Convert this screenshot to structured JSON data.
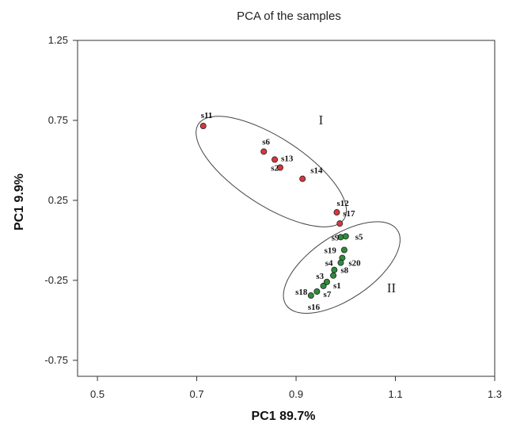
{
  "chart_data": {
    "type": "scatter",
    "title": "PCA of the samples",
    "xlabel": "PC1 89.7%",
    "ylabel": "PC1 9.9%",
    "xlim": [
      0.46,
      1.3
    ],
    "ylim": [
      -0.85,
      1.25
    ],
    "xticks": [
      "0.5",
      "0.7",
      "0.9",
      "1.1",
      "1.3"
    ],
    "yticks": [
      "1.25",
      "0.75",
      "0.25",
      "-0.25",
      "-0.75"
    ],
    "grid": false,
    "series": [
      {
        "group": "I",
        "color": "#d9363e",
        "points": [
          {
            "label": "s11",
            "x": 0.713,
            "y": 0.715
          },
          {
            "label": "s6",
            "x": 0.835,
            "y": 0.555
          },
          {
            "label": "s13",
            "x": 0.857,
            "y": 0.505
          },
          {
            "label": "s2",
            "x": 0.868,
            "y": 0.455
          },
          {
            "label": "s14",
            "x": 0.913,
            "y": 0.385
          },
          {
            "label": "s12",
            "x": 0.982,
            "y": 0.175
          },
          {
            "label": "s17",
            "x": 0.988,
            "y": 0.105
          }
        ]
      },
      {
        "group": "II",
        "color": "#2e8b3c",
        "points": [
          {
            "label": "s9",
            "x": 0.99,
            "y": 0.02
          },
          {
            "label": "s5",
            "x": 1.0,
            "y": 0.025
          },
          {
            "label": "s19",
            "x": 0.997,
            "y": -0.06
          },
          {
            "label": "s20",
            "x": 0.993,
            "y": -0.11
          },
          {
            "label": "s4",
            "x": 0.99,
            "y": -0.14
          },
          {
            "label": "s8",
            "x": 0.977,
            "y": -0.185
          },
          {
            "label": "s3",
            "x": 0.975,
            "y": -0.22
          },
          {
            "label": "s1",
            "x": 0.962,
            "y": -0.26
          },
          {
            "label": "s7",
            "x": 0.955,
            "y": -0.285
          },
          {
            "label": "s18",
            "x": 0.942,
            "y": -0.32
          },
          {
            "label": "s16",
            "x": 0.93,
            "y": -0.345
          }
        ]
      }
    ],
    "group_labels": [
      {
        "text": "I",
        "x": 0.95,
        "y": 0.725
      },
      {
        "text": "II",
        "x": 1.092,
        "y": -0.325
      }
    ],
    "ellipses": [
      {
        "group": "I",
        "cx": 0.85,
        "cy": 0.43,
        "rx": 0.175,
        "ry": 0.212,
        "angle_deg": 33
      },
      {
        "group": "II",
        "cx": 0.992,
        "cy": -0.17,
        "rx": 0.135,
        "ry": 0.198,
        "angle_deg": -34
      }
    ]
  }
}
